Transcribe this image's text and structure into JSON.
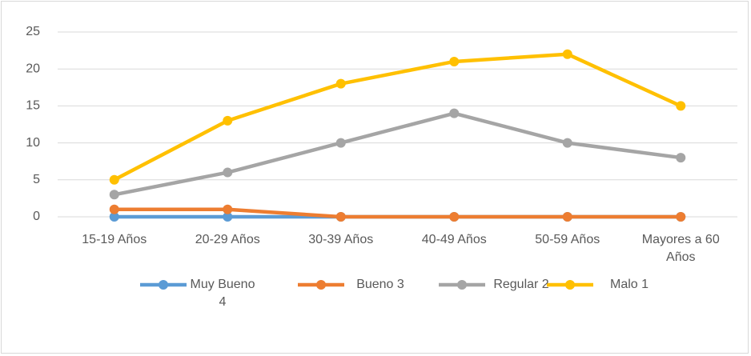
{
  "chart_data": {
    "type": "line",
    "categories": [
      "15-19 Años",
      "20-29 Años",
      "30-39 Años",
      "40-49 Años",
      "50-59 Años",
      "Mayores a 60 Años"
    ],
    "series": [
      {
        "name": "Muy Bueno 4",
        "color": "#5b9bd5",
        "values": [
          0,
          0,
          0,
          0,
          0,
          0
        ]
      },
      {
        "name": "Bueno 3",
        "color": "#ed7d31",
        "values": [
          1,
          1,
          0,
          0,
          0,
          0
        ]
      },
      {
        "name": "Regular 2",
        "color": "#a5a5a5",
        "values": [
          3,
          6,
          10,
          14,
          10,
          8
        ]
      },
      {
        "name": "Malo 1",
        "color": "#ffc000",
        "values": [
          5,
          13,
          18,
          21,
          22,
          15
        ]
      }
    ],
    "ylim": [
      0,
      25
    ],
    "yticks": [
      0,
      5,
      10,
      15,
      20,
      25
    ],
    "grid": true,
    "legend": "bottom"
  }
}
